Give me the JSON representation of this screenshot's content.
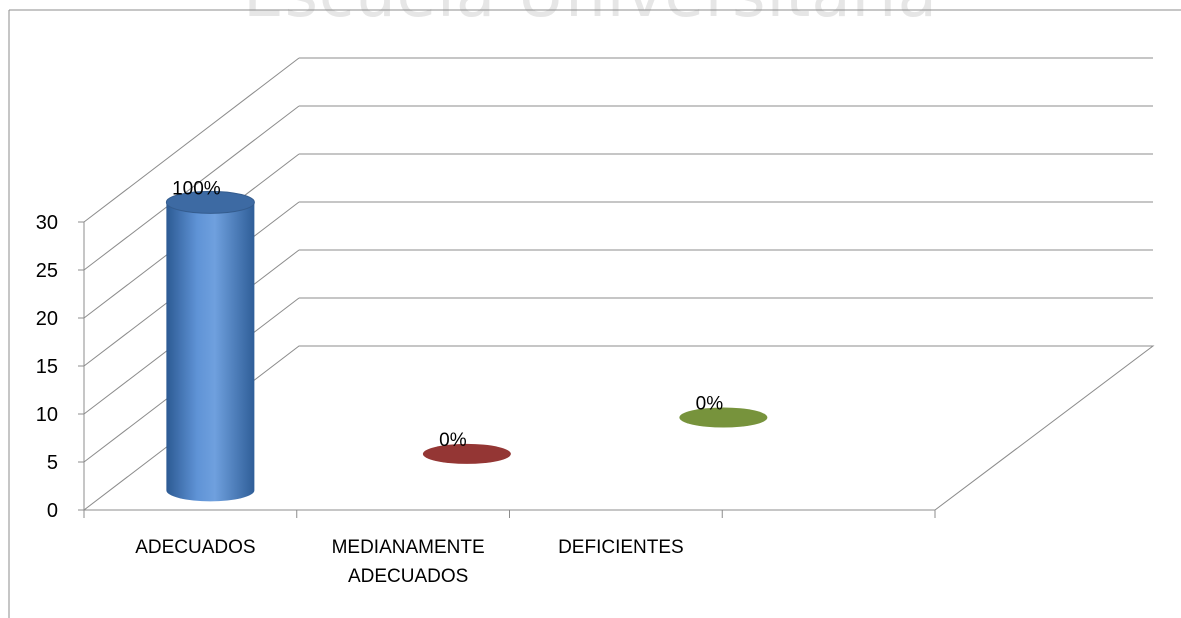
{
  "watermark": "Escuela Universitaria",
  "chart_data": {
    "type": "bar",
    "style": "3d-cylinder",
    "categories": [
      "ADECUADOS",
      "MEDIANAMENTE ADECUADOS",
      "DEFICIENTES"
    ],
    "category_lines": [
      [
        "ADECUADOS"
      ],
      [
        "MEDIANAMENTE",
        "ADECUADOS"
      ],
      [
        "DEFICIENTES"
      ]
    ],
    "values": [
      30,
      0,
      0
    ],
    "data_labels": [
      "100%",
      "0%",
      "0%"
    ],
    "colors": [
      "#4f81bd",
      "#943634",
      "#77933c"
    ],
    "ylim": [
      0,
      30
    ],
    "yticks": [
      0,
      5,
      10,
      15,
      20,
      25,
      30
    ],
    "grid": true,
    "legend": "none"
  }
}
